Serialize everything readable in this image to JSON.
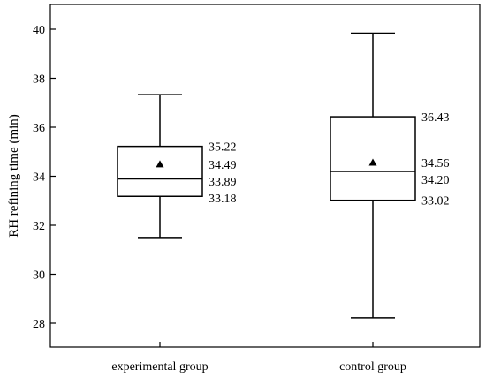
{
  "chart_data": {
    "type": "box",
    "title": "",
    "xlabel": "",
    "ylabel": "RH refining time (min)",
    "ylim": [
      27.3,
      40.8
    ],
    "yticks": [
      28,
      30,
      32,
      34,
      36,
      38,
      40
    ],
    "yticks_labels": [
      "28",
      "30",
      "32",
      "34",
      "36",
      "38",
      "40"
    ],
    "grid": false,
    "legend": "none",
    "categories": [
      "experimental group",
      "control group"
    ],
    "boxes": [
      {
        "category": "experimental group",
        "whisker_low": 31.5,
        "q1": 33.18,
        "median": 33.89,
        "mean": 34.49,
        "q3": 35.22,
        "whisker_high": 37.33,
        "annotations": [
          "35.22",
          "34.49",
          "33.89",
          "33.18"
        ]
      },
      {
        "category": "control group",
        "whisker_low": 28.22,
        "q1": 33.02,
        "median": 34.2,
        "mean": 34.56,
        "q3": 36.43,
        "whisker_high": 39.84,
        "annotations": [
          "36.43",
          "34.56",
          "34.20",
          "33.02"
        ]
      }
    ],
    "colors": {
      "box_stroke": "#000000",
      "mean_marker": "#000000",
      "background": "#ffffff"
    }
  }
}
